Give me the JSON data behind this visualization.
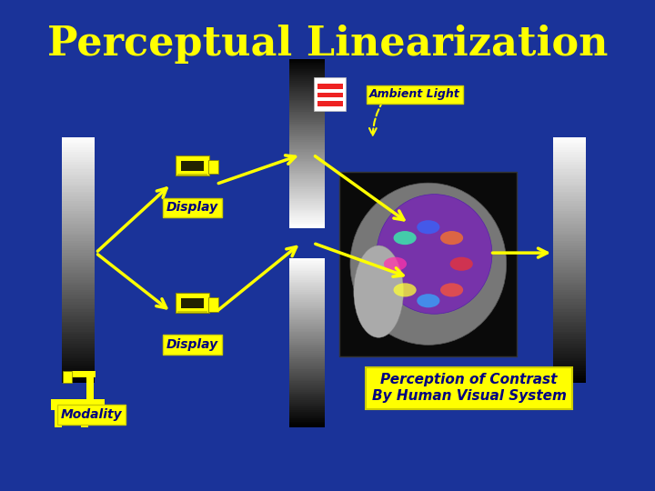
{
  "title": "Perceptual Linearization",
  "title_color": "#FFFF00",
  "title_fontsize": 32,
  "bg_color": "#1a3399",
  "label_ambient": "Ambient Light",
  "label_display1": "Display",
  "label_display2": "Display",
  "label_modality": "Modality",
  "label_perception": "Perception of Contrast\nBy Human Visual System",
  "arrow_color": "#FFFF00"
}
